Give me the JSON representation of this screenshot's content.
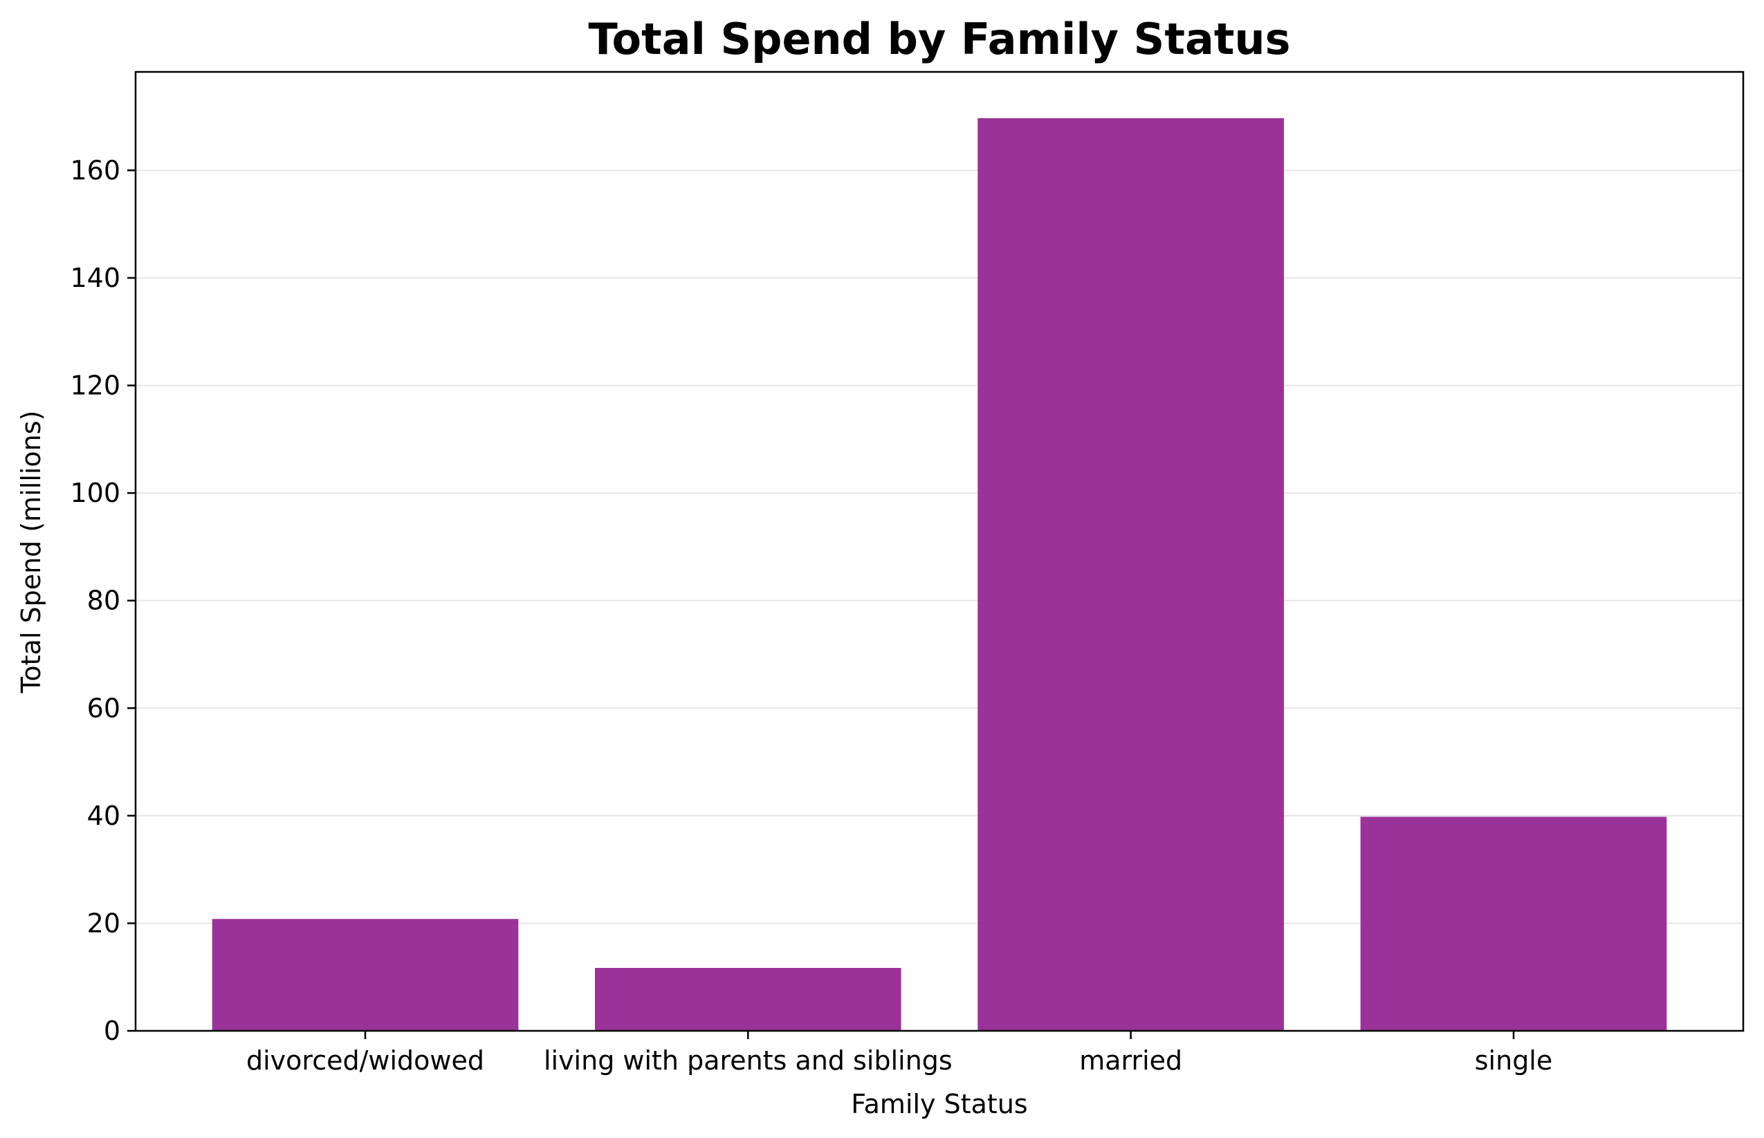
{
  "chart_data": {
    "type": "bar",
    "title": "Total Spend by Family Status",
    "xlabel": "Family Status",
    "ylabel": "Total Spend (millions)",
    "categories": [
      "divorced/widowed",
      "living with parents and siblings",
      "married",
      "single"
    ],
    "values": [
      20.8,
      11.7,
      169.7,
      39.8
    ],
    "ylim": [
      0,
      178.3
    ],
    "yticks": [
      0,
      20,
      40,
      60,
      80,
      100,
      120,
      140,
      160
    ],
    "grid": "y",
    "bar_color": "#993399",
    "legend": "none"
  }
}
